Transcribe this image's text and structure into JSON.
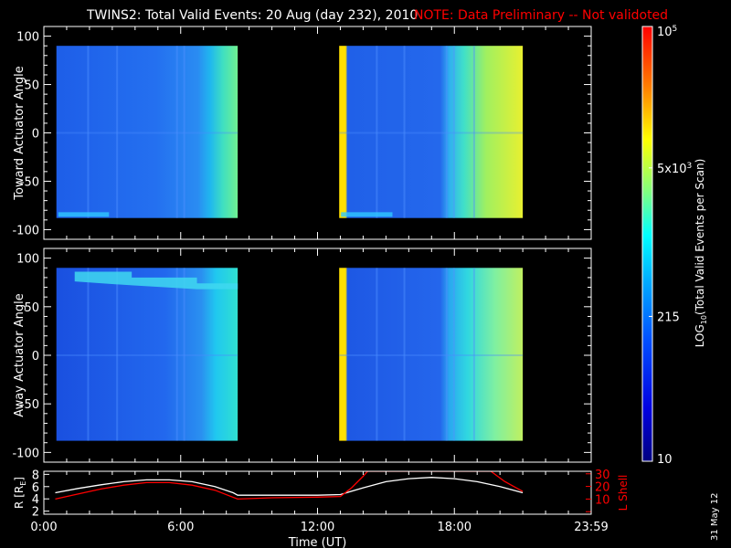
{
  "header": {
    "title": "TWINS2: Total Valid Events: 20 Aug (day 232), 2010",
    "note": "NOTE: Data Preliminary -- Not validoted"
  },
  "stamp": "31 May 12",
  "colors": {
    "background": "#000000",
    "axes": "#ffffff",
    "note": "#ff0000",
    "r_line": "#ffffff",
    "l_shell_line": "#ff0000"
  },
  "chart_data": [
    {
      "type": "heatmap",
      "panel": "toward",
      "ylabel": "Toward Actuator Angle",
      "ylim": [
        -110,
        110
      ],
      "yticks": [
        100,
        50,
        0,
        -50,
        -100
      ],
      "xlim_hours": [
        0,
        24
      ],
      "data_blocks_hours": [
        [
          0.55,
          8.5
        ],
        [
          12.95,
          21.0
        ]
      ],
      "angle_range": [
        -88,
        90
      ],
      "base_level": "blue"
    },
    {
      "type": "heatmap",
      "panel": "away",
      "ylabel": "Away Actuator Angle",
      "ylim": [
        -110,
        110
      ],
      "yticks": [
        100,
        50,
        0,
        -50,
        -100
      ],
      "xlim_hours": [
        0,
        24
      ],
      "data_blocks_hours": [
        [
          0.55,
          8.5
        ],
        [
          12.95,
          21.0
        ]
      ],
      "angle_range": [
        -88,
        90
      ],
      "base_level": "blue"
    },
    {
      "type": "line",
      "panel": "orbit",
      "xlabel": "Time (UT)",
      "xticks": [
        "0:00",
        "6:00",
        "12:00",
        "18:00",
        "23:59"
      ],
      "xtick_hours": [
        0,
        6,
        12,
        18,
        24
      ],
      "left_axis": {
        "label": "R [RE]",
        "label_text": "R [R",
        "label_sub": "E",
        "label_close": "]",
        "ticks": [
          2,
          4,
          6,
          8
        ],
        "ylim": [
          1.5,
          8.5
        ]
      },
      "right_axis": {
        "label": "L Shell",
        "ticks": [
          0,
          10,
          20,
          30
        ],
        "tick_labels": [
          "10",
          "20",
          "30"
        ],
        "ylim": [
          -2,
          32
        ]
      },
      "series": [
        {
          "name": "R",
          "axis": "left",
          "color": "#ffffff",
          "x": [
            0.5,
            1.5,
            2.5,
            3.5,
            4.5,
            5.5,
            6.5,
            7.5,
            8.3,
            8.5,
            10,
            12,
            13,
            14,
            15,
            16,
            17,
            18,
            19,
            20,
            21
          ],
          "y": [
            5.0,
            5.7,
            6.3,
            6.8,
            7.1,
            7.1,
            6.8,
            6.0,
            5.0,
            4.6,
            4.6,
            4.6,
            4.7,
            5.8,
            6.8,
            7.3,
            7.5,
            7.3,
            6.8,
            6.0,
            5.0
          ]
        },
        {
          "name": "L Shell",
          "axis": "right",
          "color": "#ff0000",
          "x": [
            0.5,
            1.5,
            2.5,
            3.5,
            4.5,
            5.5,
            6.5,
            7.5,
            8.5,
            10,
            12,
            13,
            13.5,
            14,
            14.2,
            19.6,
            20.2,
            20.6,
            21
          ],
          "y": [
            10,
            14,
            18,
            21,
            23,
            23,
            21,
            17,
            10,
            11,
            11.5,
            12,
            19,
            28,
            32,
            32,
            24,
            20,
            16
          ]
        }
      ]
    }
  ],
  "colorbar": {
    "label": "LOG10(Total Valid Events per Scan)",
    "label_main": "LOG",
    "label_sub": "10",
    "label_rest": "(Total Valid Events per Scan)",
    "scale": "log",
    "range": [
      10,
      100000
    ],
    "ticks": [
      {
        "value": 10,
        "label": "10"
      },
      {
        "value": 215,
        "label": "215"
      },
      {
        "value": 5000,
        "label_base": "5x10",
        "label_exp": "3"
      },
      {
        "value": 100000,
        "label_base": "10",
        "label_exp": "5"
      }
    ]
  }
}
